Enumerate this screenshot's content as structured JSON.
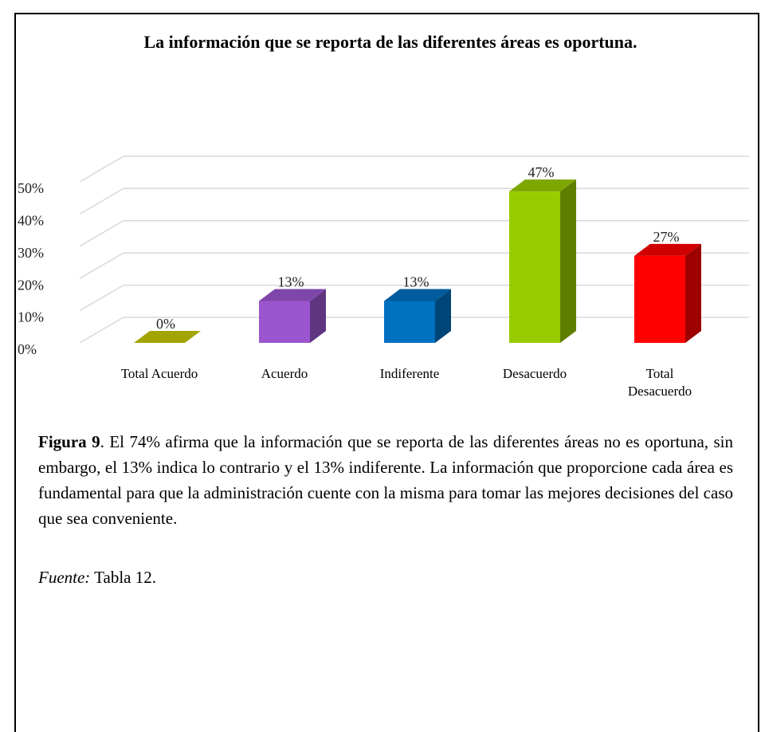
{
  "chart_data": {
    "type": "bar3d",
    "title": "La información que se reporta de las diferentes áreas es oportuna.",
    "categories": [
      "Total Acuerdo",
      "Acuerdo",
      "Indiferente",
      "Desacuerdo",
      "Total Desacuerdo"
    ],
    "values": [
      0,
      13,
      13,
      47,
      27
    ],
    "value_labels": [
      "0%",
      "13%",
      "13%",
      "47%",
      "27%"
    ],
    "colors": [
      "#c8c800",
      "#9b55cf",
      "#0070c0",
      "#99cc00",
      "#ff0000"
    ],
    "ylim": [
      0,
      50
    ],
    "yticks": [
      {
        "value": 0,
        "label": "0%"
      },
      {
        "value": 10,
        "label": "10%"
      },
      {
        "value": 20,
        "label": "20%"
      },
      {
        "value": 30,
        "label": "30%"
      },
      {
        "value": 40,
        "label": "40%"
      },
      {
        "value": 50,
        "label": "50%"
      }
    ],
    "grid": true
  },
  "caption": {
    "label": "Figura 9",
    "text": ". El 74%  afirma que la información que se reporta de las diferentes áreas no es oportuna, sin embargo, el 13% indica lo contrario y el 13% indiferente. La información que proporcione cada área es fundamental para que la administración cuente con la misma para tomar las mejores decisiones del caso que sea conveniente."
  },
  "source": {
    "label": "Fuente:",
    "text": " Tabla 12."
  }
}
